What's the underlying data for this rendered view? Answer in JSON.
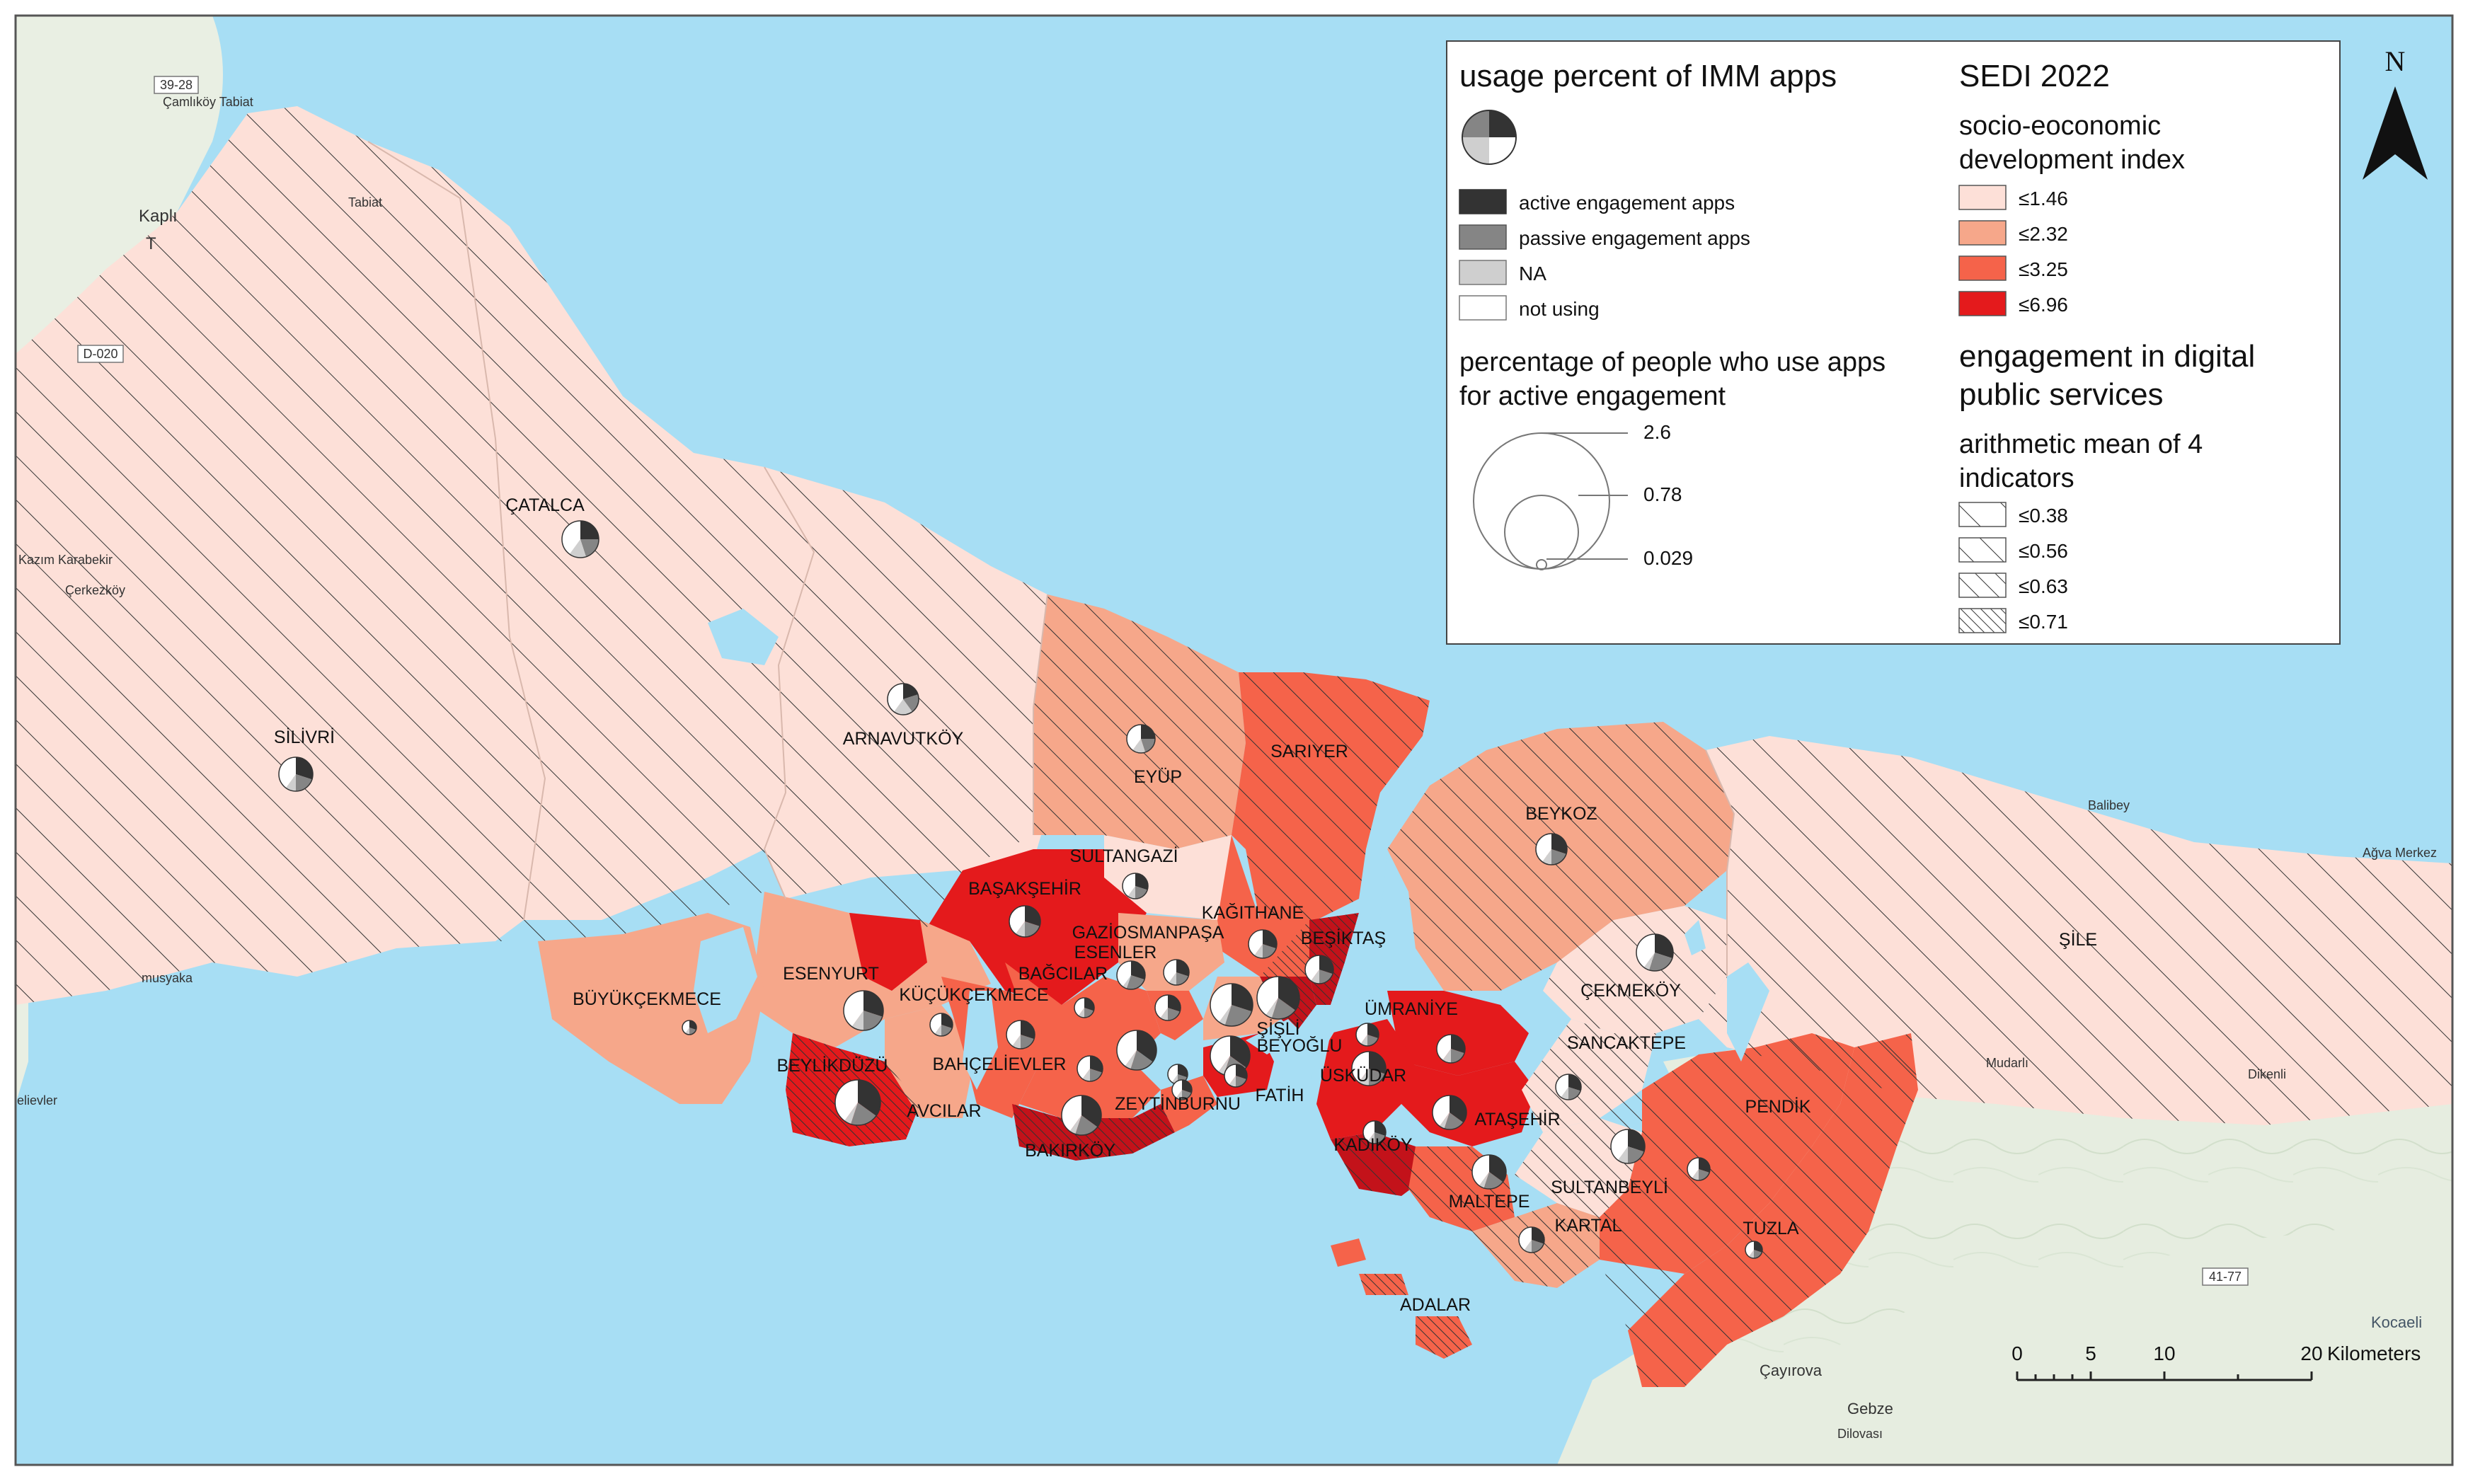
{
  "map": {
    "north_label": "N",
    "scale": {
      "ticks": [
        "0",
        "5",
        "10",
        "20"
      ],
      "unit": "Kilometers"
    },
    "background_places": [
      {
        "name": "39-28"
      },
      {
        "name": "Çamlıköy Tabiat"
      },
      {
        "name": "Tabiat"
      },
      {
        "name": "Kaplı"
      },
      {
        "name": "T"
      },
      {
        "name": "D-020"
      },
      {
        "name": "Kazım Karabekir"
      },
      {
        "name": "Çerkezköy"
      },
      {
        "name": "musyaka"
      },
      {
        "name": "elievler"
      },
      {
        "name": "Balibey"
      },
      {
        "name": "Ağva Merkez"
      },
      {
        "name": "Mudarlı"
      },
      {
        "name": "Dikenli"
      },
      {
        "name": "41-77"
      },
      {
        "name": "Kocaeli"
      },
      {
        "name": "Çayırova"
      },
      {
        "name": "Gebze"
      },
      {
        "name": "Dilovası"
      }
    ],
    "districts": [
      {
        "name": "ÇATALCA"
      },
      {
        "name": "SİLİVRİ"
      },
      {
        "name": "ARNAVUTKÖY"
      },
      {
        "name": "EYÜP"
      },
      {
        "name": "SARIYER"
      },
      {
        "name": "BEYKOZ"
      },
      {
        "name": "ŞİLE"
      },
      {
        "name": "SULTANGAZİ"
      },
      {
        "name": "BAŞAKŞEHİR"
      },
      {
        "name": "KAĞITHANE"
      },
      {
        "name": "GAZİOSMANPAŞA"
      },
      {
        "name": "ESENLER"
      },
      {
        "name": "BEŞİKTAŞ"
      },
      {
        "name": "BAĞCILAR"
      },
      {
        "name": "ESENYURT"
      },
      {
        "name": "KÜÇÜKÇEKMECE"
      },
      {
        "name": "BÜYÜKÇEKMECE"
      },
      {
        "name": "ŞİŞLİ"
      },
      {
        "name": "BEYOĞLU"
      },
      {
        "name": "ÇEKMEKÖY"
      },
      {
        "name": "ÜMRANİYE"
      },
      {
        "name": "SANCAKTEPE"
      },
      {
        "name": "BAHÇELİEVLER"
      },
      {
        "name": "BEYLİKDÜZÜ"
      },
      {
        "name": "ÜSKÜDAR"
      },
      {
        "name": "FATİH"
      },
      {
        "name": "ZEYTİNBURNU"
      },
      {
        "name": "ATAŞEHİR"
      },
      {
        "name": "PENDİK"
      },
      {
        "name": "AVCILAR"
      },
      {
        "name": "BAKIRKÖY"
      },
      {
        "name": "KADIKÖY"
      },
      {
        "name": "SULTANBEYLİ"
      },
      {
        "name": "MALTEPE"
      },
      {
        "name": "KARTAL"
      },
      {
        "name": "TUZLA"
      },
      {
        "name": "ADALAR"
      }
    ]
  },
  "legend": {
    "usage": {
      "title": "usage percent of IMM apps",
      "items": [
        {
          "label": "active engagement apps",
          "color": "#333333"
        },
        {
          "label": "passive engagement apps",
          "color": "#858585"
        },
        {
          "label": "NA",
          "color": "#cfcfcf"
        },
        {
          "label": "not using",
          "color": "#ffffff"
        }
      ]
    },
    "size": {
      "title_line1": "percentage of people who use apps",
      "title_line2": "for active engagement",
      "values": [
        "2.6",
        "0.78",
        "0.029"
      ]
    },
    "sedi": {
      "title": "SEDI 2022",
      "subtitle_line1": "socio-eoconomic",
      "subtitle_line2": "development index",
      "items": [
        {
          "label": "≤1.46",
          "color": "#fde0d8"
        },
        {
          "label": "≤2.32",
          "color": "#f6a78a"
        },
        {
          "label": "≤3.25",
          "color": "#f5634a"
        },
        {
          "label": "≤6.96",
          "color": "#e41a1c"
        }
      ]
    },
    "engagement": {
      "title_line1": "engagement in digital",
      "title_line2": "public services",
      "subtitle_line1": "arithmetic mean of 4",
      "subtitle_line2": "indicators",
      "items": [
        {
          "label": "≤0.38"
        },
        {
          "label": "≤0.56"
        },
        {
          "label": "≤0.63"
        },
        {
          "label": "≤0.71"
        }
      ]
    }
  }
}
